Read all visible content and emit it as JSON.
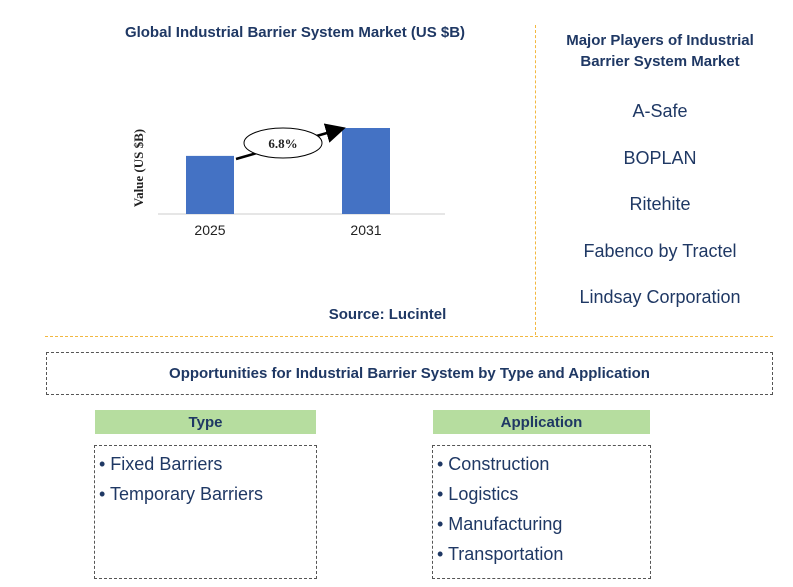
{
  "chart_data": {
    "type": "bar",
    "title": "Global Industrial Barrier System Market (US $B)",
    "categories": [
      "2025",
      "2031"
    ],
    "values": [
      1.0,
      1.48
    ],
    "ylabel": "Value (US $B)",
    "xlabel": "",
    "growth_label": "6.8%",
    "bar_color": "#4472c4",
    "grid": false
  },
  "source": "Source: Lucintel",
  "players": {
    "title": "Major Players of Industrial Barrier System Market",
    "items": [
      "A-Safe",
      "BOPLAN",
      "Ritehite",
      "Fabenco by Tractel",
      "Lindsay Corporation"
    ]
  },
  "opportunities": {
    "title": "Opportunities for Industrial Barrier System by Type and Application",
    "type": {
      "header": "Type",
      "items": [
        "• Fixed Barriers",
        "• Temporary Barriers"
      ]
    },
    "application": {
      "header": "Application",
      "items": [
        "• Construction",
        "• Logistics",
        "• Manufacturing",
        "• Transportation"
      ]
    }
  },
  "colors": {
    "accent_text": "#1f3864",
    "divider": "#f3b840",
    "category_header_bg": "#b6dd9f"
  }
}
